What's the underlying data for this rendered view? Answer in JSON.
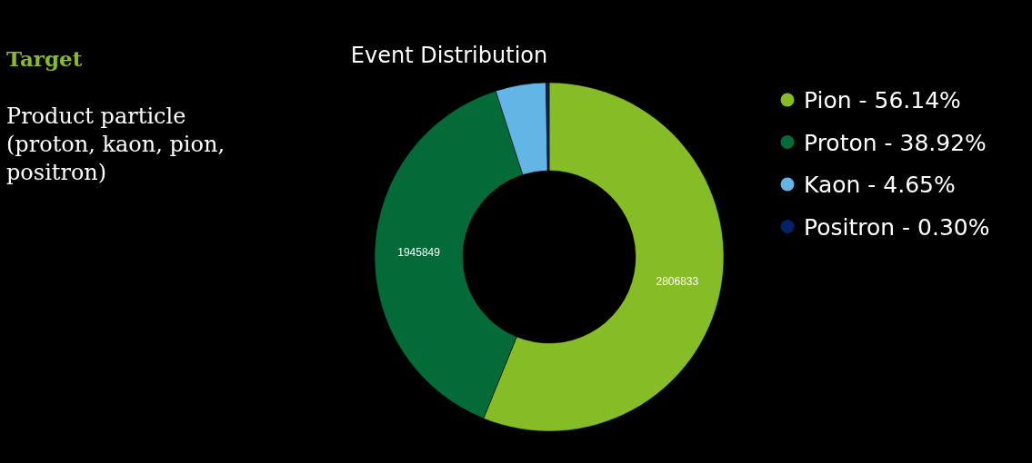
{
  "chart_data": {
    "type": "donut",
    "title": "Event Distribution",
    "categories": [
      "Pion - 56.14%",
      "Proton - 38.92%",
      "Kaon - 4.65%",
      "Positron - 0.30%"
    ],
    "values": [
      2806833,
      1945849,
      232500,
      14818
    ],
    "colors": [
      "#86bc25",
      "#046a38",
      "#62b5e5",
      "#012169"
    ],
    "value_labels": [
      "2806833",
      "1945849",
      null,
      null
    ],
    "legend": "right",
    "annotations": [
      "Target",
      "Product particle (proton, kaon, pion, positron)"
    ]
  }
}
